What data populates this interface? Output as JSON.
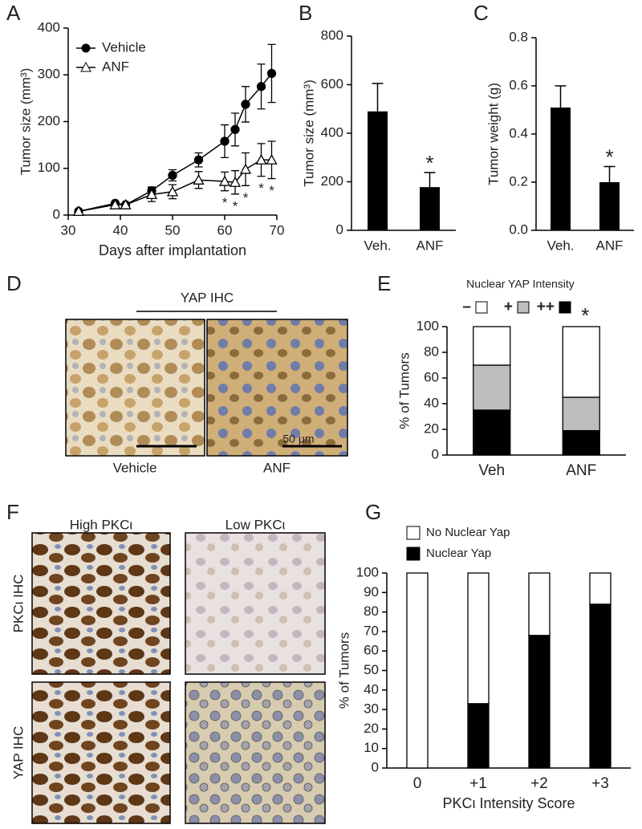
{
  "panel_labels": [
    "A",
    "B",
    "C",
    "D",
    "E",
    "F",
    "G"
  ],
  "chart_data": [
    {
      "type": "line",
      "x": [
        32,
        39,
        41,
        46,
        50,
        55,
        60,
        62,
        64,
        67,
        69
      ],
      "series": [
        {
          "name": "Vehicle",
          "color": "#000000",
          "marker": "circle",
          "marker_fill": "#000000",
          "values": [
            8,
            25,
            22,
            52,
            85,
            118,
            158,
            183,
            237,
            275,
            303
          ],
          "errors": [
            3,
            4,
            4,
            8,
            12,
            15,
            35,
            35,
            38,
            48,
            62
          ]
        },
        {
          "name": "ANF",
          "color": "#000000",
          "marker": "triangle",
          "marker_fill": "#ffffff",
          "values": [
            8,
            22,
            22,
            44,
            50,
            75,
            72,
            70,
            98,
            118,
            118
          ],
          "errors": [
            3,
            4,
            4,
            15,
            15,
            18,
            20,
            25,
            35,
            35,
            40
          ]
        }
      ],
      "significance": [
        null,
        null,
        null,
        null,
        null,
        null,
        "*",
        "*",
        "*",
        "*",
        "*"
      ],
      "xlim": [
        30,
        70
      ],
      "xticks": [
        30,
        40,
        50,
        60,
        70
      ],
      "ylim": [
        0,
        400
      ],
      "yticks": [
        0,
        100,
        200,
        300,
        400
      ],
      "x_label": "Days after implantation",
      "y_label": "Tumor size (mm³)",
      "legend": "upper left"
    },
    {
      "type": "bar",
      "categories": [
        "Veh.",
        "ANF"
      ],
      "values": [
        490,
        178
      ],
      "errors": [
        115,
        60
      ],
      "color": "#000000",
      "significance": [
        null,
        "*"
      ],
      "ylim": [
        0,
        800
      ],
      "yticks": [
        0,
        200,
        400,
        600,
        800
      ],
      "y_label": "Tumor size (mm³)"
    },
    {
      "type": "bar",
      "categories": [
        "Veh.",
        "ANF"
      ],
      "values": [
        0.51,
        0.2
      ],
      "errors": [
        0.09,
        0.065
      ],
      "color": "#000000",
      "significance": [
        null,
        "*"
      ],
      "ylim": [
        0,
        0.8
      ],
      "yticks": [
        {
          "value": 0,
          "label": "0.0"
        },
        0.2,
        0.4,
        0.6,
        0.8
      ],
      "y_label": "Tumor weight (g)"
    },
    {
      "type": "stacked_bar",
      "categories": [
        "Veh",
        "ANF"
      ],
      "series": [
        {
          "name": "–",
          "color": "#ffffff",
          "values": [
            30,
            55
          ]
        },
        {
          "name": "+",
          "color": "#bdbdbd",
          "values": [
            35,
            26
          ]
        },
        {
          "name": "++",
          "color": "#000000",
          "values": [
            35,
            19
          ]
        }
      ],
      "significance": [
        null,
        "*"
      ],
      "legend_title": "Nuclear YAP Intensity",
      "legend": "top",
      "ylim": [
        0,
        100
      ],
      "yticks": [
        0,
        20,
        40,
        60,
        80,
        100
      ],
      "y_label": "% of Tumors"
    },
    {
      "type": "stacked_bar",
      "categories": [
        "0",
        "+1",
        "+2",
        "+3"
      ],
      "series": [
        {
          "name": "No Nuclear Yap",
          "color": "#ffffff",
          "values": [
            100,
            67,
            32,
            16
          ]
        },
        {
          "name": "Nuclear Yap",
          "color": "#000000",
          "values": [
            0,
            33,
            68,
            84
          ]
        }
      ],
      "legend": "top left",
      "ylim": [
        0,
        100
      ],
      "yticks": [
        0,
        10,
        20,
        30,
        40,
        50,
        60,
        70,
        80,
        90,
        100
      ],
      "x_label": "PKCι Intensity Score",
      "y_label": "% of Tumors"
    }
  ],
  "panel_d": {
    "title": "YAP IHC",
    "captions": [
      "Vehicle",
      "ANF"
    ],
    "scale_bar": "50 µm"
  },
  "panel_f": {
    "columns": [
      "High PKCι",
      "Low PKCι"
    ],
    "rows": [
      "PKCι IHC",
      "YAP IHC"
    ]
  }
}
